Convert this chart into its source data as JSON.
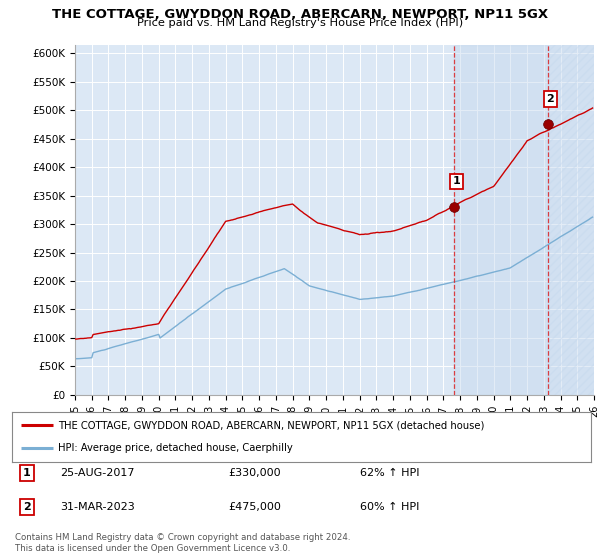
{
  "title": "THE COTTAGE, GWYDDON ROAD, ABERCARN, NEWPORT, NP11 5GX",
  "subtitle": "Price paid vs. HM Land Registry's House Price Index (HPI)",
  "ylabel_ticks": [
    "£0",
    "£50K",
    "£100K",
    "£150K",
    "£200K",
    "£250K",
    "£300K",
    "£350K",
    "£400K",
    "£450K",
    "£500K",
    "£550K",
    "£600K"
  ],
  "ytick_values": [
    0,
    50000,
    100000,
    150000,
    200000,
    250000,
    300000,
    350000,
    400000,
    450000,
    500000,
    550000,
    600000
  ],
  "ylim": [
    0,
    615000
  ],
  "hpi_color": "#7bafd4",
  "price_color": "#cc0000",
  "marker_color": "#990000",
  "bg_color": "#dce8f5",
  "grid_color": "#ffffff",
  "shade_color": "#c5d8ee",
  "legend_line1": "THE COTTAGE, GWYDDON ROAD, ABERCARN, NEWPORT, NP11 5GX (detached house)",
  "legend_line2": "HPI: Average price, detached house, Caerphilly",
  "sale1_label": "1",
  "sale1_date": "25-AUG-2017",
  "sale1_price": "£330,000",
  "sale1_pct": "62% ↑ HPI",
  "sale1_year": 2017.65,
  "sale1_value": 330000,
  "sale2_label": "2",
  "sale2_date": "31-MAR-2023",
  "sale2_price": "£475,000",
  "sale2_pct": "60% ↑ HPI",
  "sale2_year": 2023.25,
  "sale2_value": 475000,
  "footer": "Contains HM Land Registry data © Crown copyright and database right 2024.\nThis data is licensed under the Open Government Licence v3.0.",
  "xstart": 1995,
  "xend": 2026
}
